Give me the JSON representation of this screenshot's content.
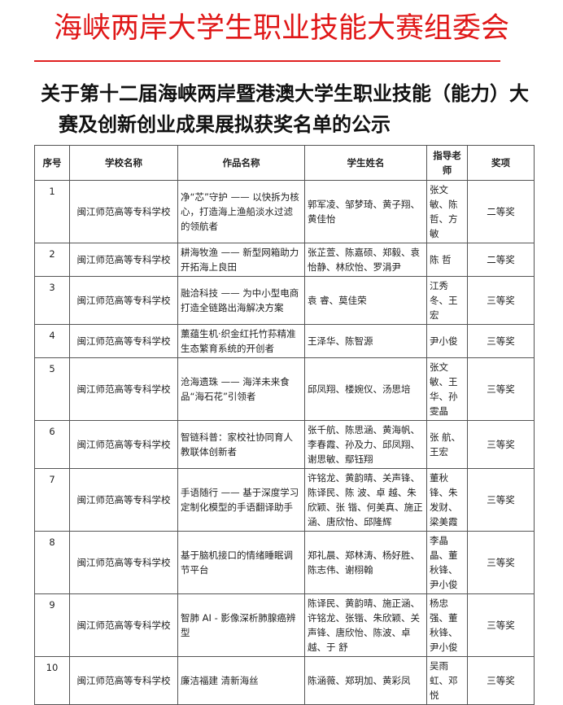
{
  "org_title": "海峡两岸大学生职业技能大赛组委会",
  "headline": [
    "关于第十二届海峡两岸暨港澳大学生职业技能（能力）大",
    "赛及创新创业成果展拟获奖名单的公示"
  ],
  "table": {
    "headers": [
      "序号",
      "学校名称",
      "作品名称",
      "学生姓名",
      "指导老师",
      "奖项"
    ],
    "rows": [
      [
        "1",
        "闽江师范高等专科学校",
        "净“芯”守护 —— 以快拆为核心，打造海上渔船淡水过滤的领航者",
        "郭军凌、邹梦琦、黄子翔、黄佳怡",
        "张文敏、陈哲、方敏",
        "二等奖"
      ],
      [
        "2",
        "闽江师范高等专科学校",
        "耕海牧渔 —— 新型网箱助力开拓海上良田",
        "张芷萱、陈嘉硕、郑毅、袁怡静、林欣怡、罗涓尹",
        "陈 哲",
        "二等奖"
      ],
      [
        "3",
        "闽江师范高等专科学校",
        "融洽科技 —— 为中小型电商打造全链路出海解决方案",
        "袁 睿、莫佳荣",
        "江秀冬、王 宏",
        "三等奖"
      ],
      [
        "4",
        "闽江师范高等专科学校",
        "薰蕴生机·织金红托竹荪精准生态繁育系统的开创者",
        "王泽华、陈智源",
        "尹小俊",
        "三等奖"
      ],
      [
        "5",
        "闽江师范高等专科学校",
        "沧海遗珠 —— 海洋未来食品“海石花”引领者",
        "邱凤翔、楼婉仪、汤思培",
        "张文敏、王 华、孙雯晶",
        "三等奖"
      ],
      [
        "6",
        "闽江师范高等专科学校",
        "智链科普：家校社协同育人教联体创新者",
        "张千航、陈思涵、黄海帆、李春霞、孙及力、邱凤翔、谢思敏、鄢钰翔",
        "张 航、王宏",
        "三等奖"
      ],
      [
        "7",
        "闽江师范高等专科学校",
        "手语随行 —— 基于深度学习定制化模型的手语翻译助手",
        "许铭龙、黄韵晴、关声锋、陈译民、陈 波、卓 越、朱欣颖、张 锴、何美真、施正涵、唐欣怡、邱隆辉",
        "董秋锋、朱发财、梁美霞",
        "三等奖"
      ],
      [
        "8",
        "闽江师范高等专科学校",
        "基于脑机接口的情绪睡眠调节平台",
        "郑礼晨、郑林涛、杨好胜、陈志伟、谢栩翰",
        "李晶晶、董秋锋、尹小俊",
        "三等奖"
      ],
      [
        "9",
        "闽江师范高等专科学校",
        "智肺 AI - 影像深析肺腺癌辨型",
        "陈译民、黄韵晴、施正涵、许铭龙、张锴、朱欣颖、关声锋、唐欣怡、陈波、卓 越、于 舒",
        "杨忠强、董秋锋、尹小俊",
        "三等奖"
      ],
      [
        "10",
        "闽江师范高等专科学校",
        "廉洁福建 清新海丝",
        "陈涵薇、郑玥加、黄彩凤",
        "吴雨虹、邓 悦",
        "三等奖"
      ]
    ]
  },
  "colors": {
    "org_title": "#e01818",
    "rule": "#e02020"
  }
}
